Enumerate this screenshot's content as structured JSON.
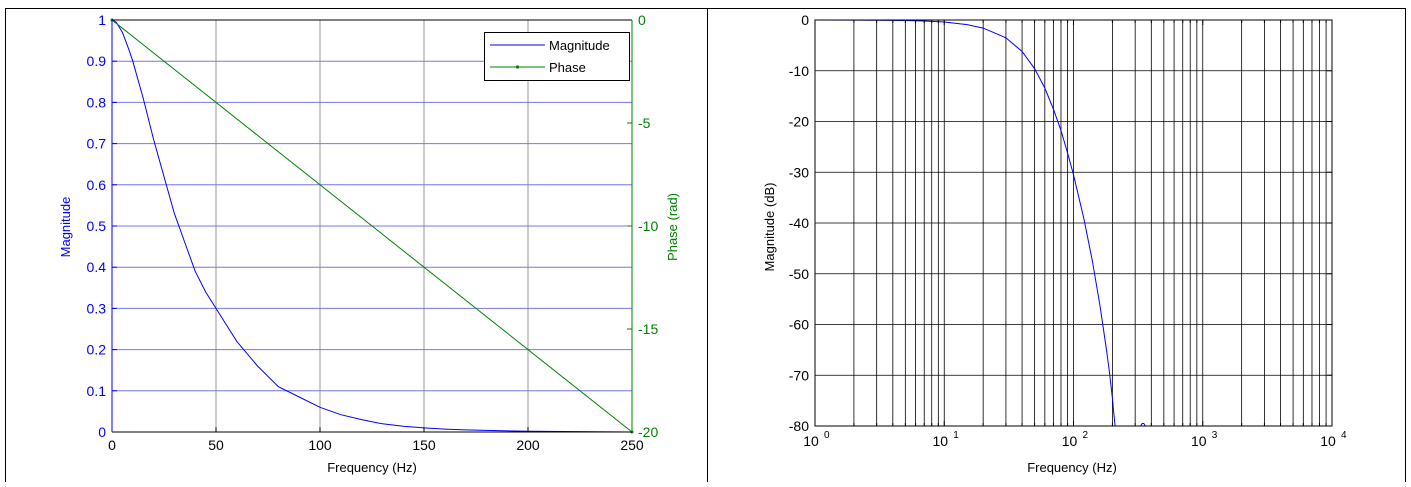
{
  "chart_data": [
    {
      "type": "line",
      "xlabel": "Frequency (Hz)",
      "ylabel": "Magnitude",
      "ylabel_right": "Phase (rad)",
      "xlim": [
        0,
        250
      ],
      "ylim": [
        0,
        1
      ],
      "ylim_right": [
        -20,
        0
      ],
      "x_ticks": [
        "0",
        "50",
        "100",
        "150",
        "200",
        "250"
      ],
      "y_ticks": [
        "0",
        "0.1",
        "0.2",
        "0.3",
        "0.4",
        "0.5",
        "0.6",
        "0.7",
        "0.8",
        "0.9",
        "1"
      ],
      "y_ticks_right": [
        "-20",
        "-15",
        "-10",
        "-5",
        "0"
      ],
      "grid": true,
      "legend_position": "top-right",
      "colors": {
        "magnitude": "#0000ff",
        "phase": "#008000",
        "axis_left": "#0000ff",
        "axis_right": "#008000"
      },
      "series": [
        {
          "name": "Magnitude",
          "axis": "left",
          "x": [
            0,
            2,
            5,
            8,
            10,
            15,
            20,
            25,
            30,
            35,
            40,
            45,
            50,
            55,
            60,
            70,
            80,
            90,
            100,
            110,
            120,
            130,
            140,
            150,
            160,
            170,
            180,
            200,
            225,
            250
          ],
          "y": [
            1,
            0.995,
            0.97,
            0.93,
            0.9,
            0.81,
            0.71,
            0.62,
            0.53,
            0.46,
            0.39,
            0.34,
            0.3,
            0.26,
            0.22,
            0.16,
            0.11,
            0.085,
            0.06,
            0.042,
            0.03,
            0.02,
            0.014,
            0.01,
            0.007,
            0.005,
            0.004,
            0.002,
            0.001,
            0
          ]
        },
        {
          "name": "Phase",
          "axis": "right",
          "marker": "dot",
          "x": [
            0,
            250
          ],
          "y": [
            0,
            -20
          ]
        }
      ]
    },
    {
      "type": "line",
      "xlabel": "Frequency (Hz)",
      "ylabel": "Magnitude (dB)",
      "xscale": "log",
      "xlim": [
        1,
        10000
      ],
      "ylim": [
        -80,
        0
      ],
      "x_tick_bases": [
        "10",
        "10",
        "10",
        "10",
        "10"
      ],
      "x_tick_exponents": [
        "0",
        "1",
        "2",
        "3",
        "4"
      ],
      "y_ticks": [
        "0",
        "-10",
        "-20",
        "-30",
        "-40",
        "-50",
        "-60",
        "-70",
        "-80"
      ],
      "grid": true,
      "colors": {
        "line": "#0000ff",
        "grid": "#000000"
      },
      "series": [
        {
          "x": [
            1,
            2,
            3,
            5,
            7,
            10,
            15,
            20,
            30,
            40,
            50,
            60,
            70,
            80,
            90,
            100,
            120,
            140,
            160,
            180,
            190,
            200,
            205,
            210
          ],
          "y": [
            0,
            -0.01,
            -0.03,
            -0.1,
            -0.2,
            -0.4,
            -0.9,
            -1.6,
            -3.5,
            -6.2,
            -9.6,
            -13.4,
            -17.6,
            -21.8,
            -26.2,
            -30.5,
            -39,
            -47.5,
            -56.2,
            -65,
            -69.5,
            -74.5,
            -77.5,
            -80
          ]
        },
        {
          "x": [
            330,
            340,
            350,
            360
          ],
          "y": [
            -80,
            -79.5,
            -79.5,
            -80
          ]
        }
      ]
    }
  ]
}
